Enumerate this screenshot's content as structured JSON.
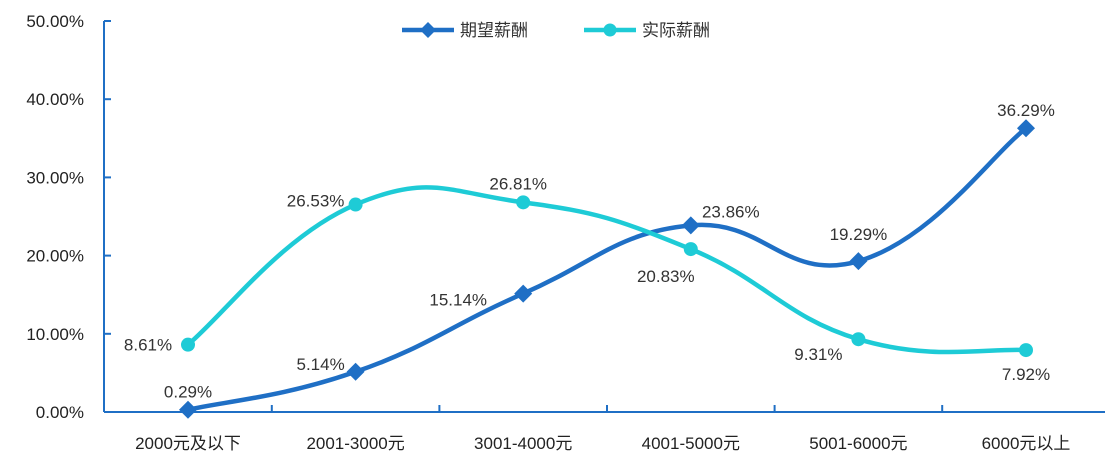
{
  "chart_data": {
    "type": "line",
    "categories": [
      "2000元及以下",
      "2001-3000元",
      "3001-4000元",
      "4001-5000元",
      "5001-6000元",
      "6000元以上"
    ],
    "ylim": [
      0,
      50
    ],
    "y_ticks": [
      "0.00%",
      "10.00%",
      "20.00%",
      "30.00%",
      "40.00%",
      "50.00%"
    ],
    "grid": false,
    "legend_position": "top-center",
    "series": [
      {
        "name": "期望薪酬",
        "color": "#1f6fc5",
        "marker": "diamond",
        "values": [
          0.29,
          5.14,
          15.14,
          23.86,
          19.29,
          36.29
        ],
        "labels": [
          "0.29%",
          "5.14%",
          "15.14%",
          "23.86%",
          "19.29%",
          "36.29%"
        ]
      },
      {
        "name": "实际薪酬",
        "color": "#1ecbd6",
        "marker": "circle",
        "values": [
          8.61,
          26.53,
          26.81,
          20.83,
          9.31,
          7.92
        ],
        "labels": [
          "8.61%",
          "26.53%",
          "26.81%",
          "20.83%",
          "9.31%",
          "7.92%"
        ]
      }
    ]
  }
}
